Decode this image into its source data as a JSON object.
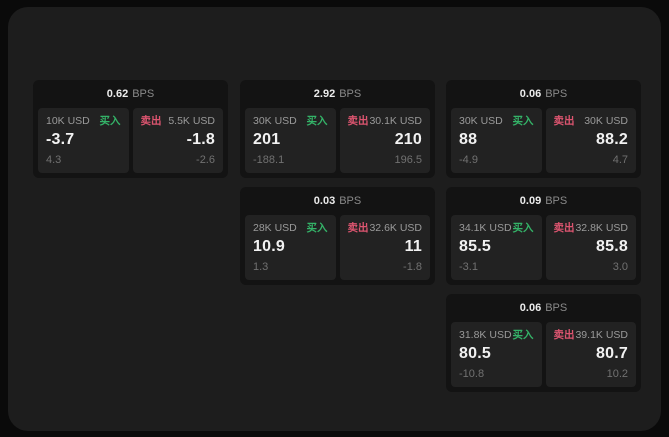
{
  "theme": {
    "outer_bg": "#0a0a0a",
    "window_bg": "#1d1d1d",
    "card_bg": "#131313",
    "tile_bg": "#222222",
    "buy_color": "#34b368",
    "sell_color": "#dd5570"
  },
  "labels": {
    "buy": "买入",
    "sell": "卖出",
    "bps": "BPS"
  },
  "cards": [
    {
      "bps": "0.62",
      "buy": {
        "amount": "10K USD",
        "value": "-3.7",
        "delta": "4.3"
      },
      "sell": {
        "amount": "5.5K USD",
        "value": "-1.8",
        "delta": "-2.6"
      }
    },
    {
      "bps": "2.92",
      "buy": {
        "amount": "30K USD",
        "value": "201",
        "delta": "-188.1"
      },
      "sell": {
        "amount": "30.1K USD",
        "value": "210",
        "delta": "196.5"
      }
    },
    {
      "bps": "0.06",
      "buy": {
        "amount": "30K USD",
        "value": "88",
        "delta": "-4.9"
      },
      "sell": {
        "amount": "30K USD",
        "value": "88.2",
        "delta": "4.7"
      }
    },
    {
      "bps": "0.03",
      "buy": {
        "amount": "28K USD",
        "value": "10.9",
        "delta": "1.3"
      },
      "sell": {
        "amount": "32.6K USD",
        "value": "11",
        "delta": "-1.8"
      }
    },
    {
      "bps": "0.09",
      "buy": {
        "amount": "34.1K USD",
        "value": "85.5",
        "delta": "-3.1"
      },
      "sell": {
        "amount": "32.8K USD",
        "value": "85.8",
        "delta": "3.0"
      }
    },
    {
      "bps": "0.06",
      "buy": {
        "amount": "31.8K USD",
        "value": "80.5",
        "delta": "-10.8"
      },
      "sell": {
        "amount": "39.1K USD",
        "value": "80.7",
        "delta": "10.2"
      }
    }
  ]
}
